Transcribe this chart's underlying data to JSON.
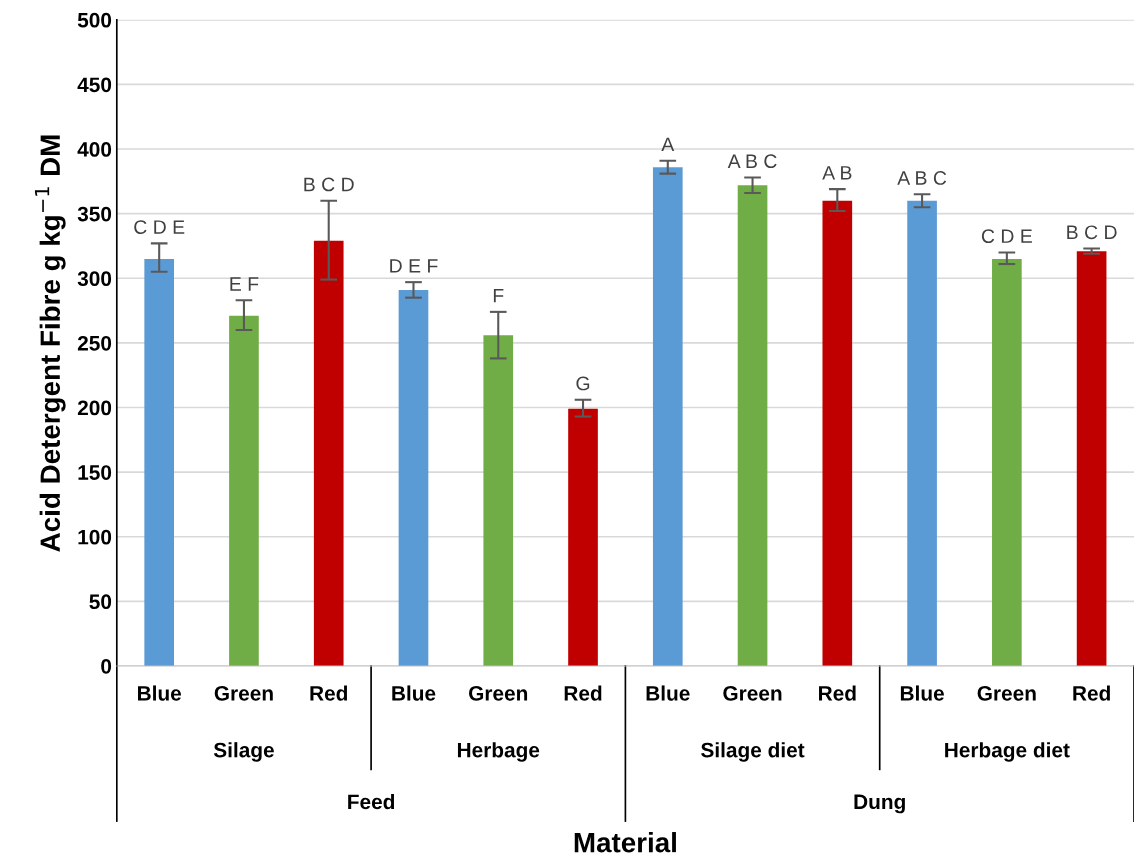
{
  "chart_data": {
    "type": "bar",
    "categories": [
      "Blue",
      "Green",
      "Red",
      "Blue",
      "Green",
      "Red",
      "Blue",
      "Green",
      "Red",
      "Blue",
      "Green",
      "Red"
    ],
    "values": [
      315,
      271,
      329,
      291,
      256,
      199,
      386,
      372,
      360,
      360,
      315,
      321
    ],
    "colors": [
      "#5b9bd5",
      "#70ad47",
      "#c00000",
      "#5b9bd5",
      "#70ad47",
      "#c00000",
      "#5b9bd5",
      "#70ad47",
      "#c00000",
      "#5b9bd5",
      "#70ad47",
      "#c00000"
    ],
    "errors": [
      [
        305,
        327
      ],
      [
        260,
        283
      ],
      [
        299,
        360
      ],
      [
        285,
        297
      ],
      [
        238,
        274
      ],
      [
        193,
        206
      ],
      [
        381,
        391
      ],
      [
        366,
        378
      ],
      [
        352,
        369
      ],
      [
        355,
        365
      ],
      [
        311,
        320
      ],
      [
        319,
        323
      ]
    ],
    "value_labels": [
      "C D E",
      "E F",
      "B C D",
      "D E F",
      "F",
      "G",
      "A",
      "A B C",
      "A B",
      "A B C",
      "C D E",
      "B C D"
    ],
    "annotations": [
      "Silage",
      "Herbage",
      "Silage diet",
      "Herbage diet",
      "Feed",
      "Dung"
    ],
    "xlabel": "Material",
    "ylabel": "Acid Detergent Fibre g kg$^{−1}$ DM",
    "ylim": [
      0,
      500
    ],
    "yticks": [
      0,
      50,
      100,
      150,
      200,
      250,
      300,
      350,
      400,
      450,
      500
    ],
    "grid": "y"
  }
}
